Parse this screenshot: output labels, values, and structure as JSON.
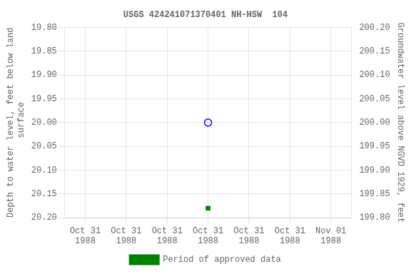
{
  "chart_data": {
    "type": "scatter",
    "title": "USGS 424241071370401 NH-HSW  104",
    "y_label": "Depth to water level, feet below land\n surface",
    "y2_label": "Groundwater level above NGVD 1929, feet",
    "categories": [
      "Oct 31\n1988",
      "Oct 31\n1988",
      "Oct 31\n1988",
      "Oct 31\n1988",
      "Oct 31\n1988",
      "Oct 31\n1988",
      "Nov 01\n1988"
    ],
    "series": [
      {
        "color": "#0000ff",
        "marker": "open_circle",
        "line_style": "none",
        "values": [
          null,
          null,
          null,
          20.0,
          null,
          null,
          null
        ]
      },
      {
        "name": "Period of approved data",
        "color": "#008000",
        "marker": "square",
        "line_style": "none",
        "values": [
          null,
          null,
          null,
          20.18,
          null,
          null,
          null
        ]
      }
    ],
    "ylim": [
      20.2,
      19.8
    ],
    "yticks": [
      {
        "value": 19.8,
        "label": "19.80"
      },
      {
        "value": 19.85,
        "label": "19.85"
      },
      {
        "value": 19.9,
        "label": "19.90"
      },
      {
        "value": 19.95,
        "label": "19.95"
      },
      {
        "value": 20.0,
        "label": "20.00"
      },
      {
        "value": 20.05,
        "label": "20.05"
      },
      {
        "value": 20.1,
        "label": "20.10"
      },
      {
        "value": 20.15,
        "label": "20.15"
      },
      {
        "value": 20.2,
        "label": "20.20"
      }
    ],
    "y2lim": [
      199.8,
      200.2
    ],
    "y2ticks": [
      {
        "value": 199.8,
        "label": "199.80"
      },
      {
        "value": 199.85,
        "label": "199.85"
      },
      {
        "value": 199.9,
        "label": "199.90"
      },
      {
        "value": 199.95,
        "label": "199.95"
      },
      {
        "value": 200.0,
        "label": "200.00"
      },
      {
        "value": 200.05,
        "label": "200.05"
      },
      {
        "value": 200.1,
        "label": "200.10"
      },
      {
        "value": 200.15,
        "label": "200.15"
      },
      {
        "value": 200.2,
        "label": "200.20"
      }
    ],
    "grid": true,
    "legend": "bottom"
  }
}
